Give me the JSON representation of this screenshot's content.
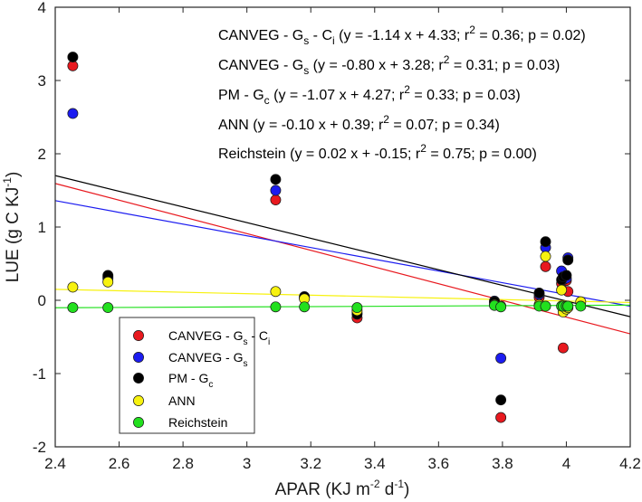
{
  "chart_data": {
    "type": "scatter",
    "xlabel": {
      "pre": "APAR (KJ m",
      "sup1": "-2",
      "mid": " d",
      "sup2": "-1",
      "post": ")"
    },
    "ylabel": {
      "pre": "LUE (g C KJ",
      "sup": "-1",
      "post": ")"
    },
    "xlim": [
      2.4,
      4.2
    ],
    "ylim": [
      -2,
      4
    ],
    "xticks": [
      2.4,
      2.6,
      2.8,
      3,
      3.2,
      3.4,
      3.6,
      3.8,
      4,
      4.2
    ],
    "yticks": [
      -2,
      -1,
      0,
      1,
      2,
      3,
      4
    ],
    "xtick_labels": [
      "2.4",
      "2.6",
      "2.8",
      "3",
      "3.2",
      "3.4",
      "3.6",
      "3.8",
      "4",
      "4.2"
    ],
    "ytick_labels": [
      "-2",
      "-1",
      "0",
      "1",
      "2",
      "3",
      "4"
    ],
    "grid": false,
    "legend_placement": "bottom-left",
    "series": [
      {
        "key": "canveg_gs_ci",
        "name_parts": [
          [
            "CANVEG - G",
            ""
          ],
          [
            "s",
            "sub"
          ],
          [
            " - C",
            ""
          ],
          [
            "i",
            "sub"
          ]
        ],
        "color": "#e8191f",
        "fit": {
          "slope": -1.14,
          "intercept": 4.33
        },
        "x": [
          2.455,
          2.565,
          3.09,
          3.18,
          3.345,
          3.775,
          3.795,
          3.915,
          3.935,
          3.985,
          3.99,
          4.0,
          4.005
        ],
        "y": [
          3.2,
          0.32,
          1.37,
          0.03,
          -0.24,
          -0.03,
          -1.6,
          0.04,
          0.46,
          0.23,
          -0.65,
          0.27,
          0.12
        ]
      },
      {
        "key": "canveg_gs",
        "name_parts": [
          [
            "CANVEG - G",
            ""
          ],
          [
            "s",
            "sub"
          ]
        ],
        "color": "#1c1cf0",
        "fit": {
          "slope": -0.8,
          "intercept": 3.28
        },
        "x": [
          2.455,
          2.565,
          3.09,
          3.18,
          3.345,
          3.775,
          3.795,
          3.915,
          3.935,
          3.985,
          3.99,
          4.0,
          4.005
        ],
        "y": [
          2.55,
          0.3,
          1.5,
          0.04,
          -0.17,
          -0.01,
          -0.79,
          0.08,
          0.72,
          0.4,
          0.28,
          0.3,
          0.58
        ]
      },
      {
        "key": "pm_gc",
        "name_parts": [
          [
            "PM - G",
            ""
          ],
          [
            "c",
            "sub"
          ]
        ],
        "color": "#000000",
        "fit": {
          "slope": -1.07,
          "intercept": 4.27
        },
        "x": [
          2.455,
          2.565,
          3.09,
          3.18,
          3.345,
          3.775,
          3.795,
          3.915,
          3.935,
          3.985,
          3.99,
          4.0,
          4.005
        ],
        "y": [
          3.32,
          0.34,
          1.65,
          0.05,
          -0.19,
          -0.02,
          -1.36,
          0.1,
          0.8,
          0.28,
          0.32,
          0.34,
          0.55
        ]
      },
      {
        "key": "ann",
        "name_parts": [
          [
            "ANN",
            ""
          ]
        ],
        "color": "#f7f20f",
        "fit": {
          "slope": -0.1,
          "intercept": 0.39
        },
        "x": [
          2.455,
          2.565,
          3.09,
          3.18,
          3.345,
          3.775,
          3.795,
          3.915,
          3.935,
          3.985,
          3.99,
          4.0,
          4.005,
          4.045
        ],
        "y": [
          0.18,
          0.25,
          0.12,
          0.02,
          -0.14,
          -0.06,
          -0.08,
          -0.06,
          0.6,
          0.14,
          -0.16,
          -0.12,
          -0.1,
          -0.02
        ]
      },
      {
        "key": "reichstein",
        "name_parts": [
          [
            "Reichstein",
            ""
          ]
        ],
        "color": "#22e01e",
        "fit": {
          "slope": 0.02,
          "intercept": -0.15
        },
        "x": [
          2.455,
          2.565,
          3.09,
          3.18,
          3.345,
          3.775,
          3.795,
          3.915,
          3.935,
          3.985,
          3.99,
          4.0,
          4.005,
          4.045
        ],
        "y": [
          -0.1,
          -0.1,
          -0.09,
          -0.09,
          -0.1,
          -0.07,
          -0.09,
          -0.08,
          -0.08,
          -0.08,
          -0.08,
          -0.08,
          -0.08,
          -0.08
        ]
      }
    ],
    "annotations": [
      {
        "parts": [
          [
            "CANVEG - G",
            ""
          ],
          [
            "s",
            "sub"
          ],
          [
            " - C",
            ""
          ],
          [
            "i",
            "sub"
          ],
          [
            " (y = -1.14 x + 4.33; r",
            ""
          ],
          [
            "2",
            "sup"
          ],
          [
            " = 0.36; p = 0.02)",
            ""
          ]
        ]
      },
      {
        "parts": [
          [
            "CANVEG - G",
            ""
          ],
          [
            "s",
            "sub"
          ],
          [
            " (y = -0.80 x + 3.28; r",
            ""
          ],
          [
            "2",
            "sup"
          ],
          [
            " = 0.31; p = 0.03)",
            ""
          ]
        ]
      },
      {
        "parts": [
          [
            "PM - G",
            ""
          ],
          [
            "c",
            "sub"
          ],
          [
            " (y = -1.07 x + 4.27; r",
            ""
          ],
          [
            "2",
            "sup"
          ],
          [
            " = 0.33; p = 0.03)",
            ""
          ]
        ]
      },
      {
        "parts": [
          [
            "ANN (y = -0.10 x + 0.39; r",
            ""
          ],
          [
            "2",
            "sup"
          ],
          [
            " = 0.07; p = 0.34)",
            ""
          ]
        ]
      },
      {
        "parts": [
          [
            "Reichstein (y = 0.02 x + -0.15; r",
            ""
          ],
          [
            "2",
            "sup"
          ],
          [
            " = 0.75; p = 0.00)",
            ""
          ]
        ]
      }
    ]
  }
}
